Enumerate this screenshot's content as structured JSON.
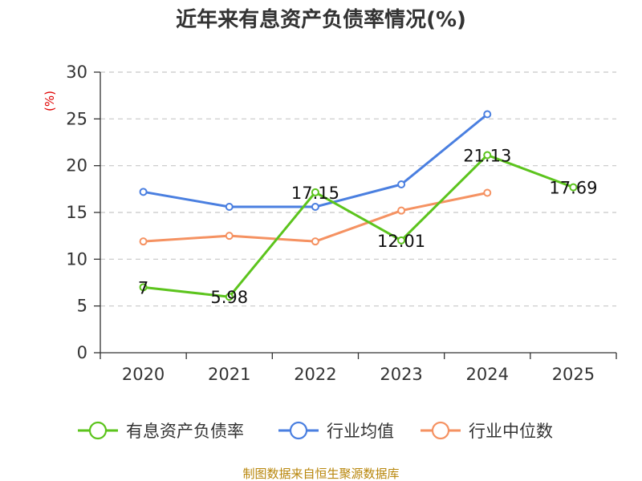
{
  "chart_data": {
    "type": "line",
    "title": "近年来有息资产负债率情况(%)",
    "y_unit": "(%)",
    "categories": [
      "2020",
      "2021",
      "2022",
      "2023",
      "2024",
      "2025"
    ],
    "ylim": [
      0,
      30
    ],
    "yticks": [
      0,
      5,
      10,
      15,
      20,
      25,
      30
    ],
    "grid": "horizontal-dashed",
    "legend_position": "bottom",
    "series": [
      {
        "name": "有息资产负债率",
        "color": "#5cc41d",
        "values": [
          7,
          5.98,
          17.15,
          12.01,
          21.13,
          17.69
        ],
        "data_labels": [
          "7",
          "5.98",
          "17.15",
          "12.01",
          "21.13",
          "17.69"
        ]
      },
      {
        "name": "行业均值",
        "color": "#4a7fe0",
        "values": [
          17.2,
          15.6,
          15.6,
          18.0,
          25.5,
          null
        ]
      },
      {
        "name": "行业中位数",
        "color": "#f59262",
        "values": [
          11.9,
          12.5,
          11.9,
          15.2,
          17.1,
          null
        ]
      }
    ],
    "source": "制图数据来自恒生聚源数据库"
  }
}
